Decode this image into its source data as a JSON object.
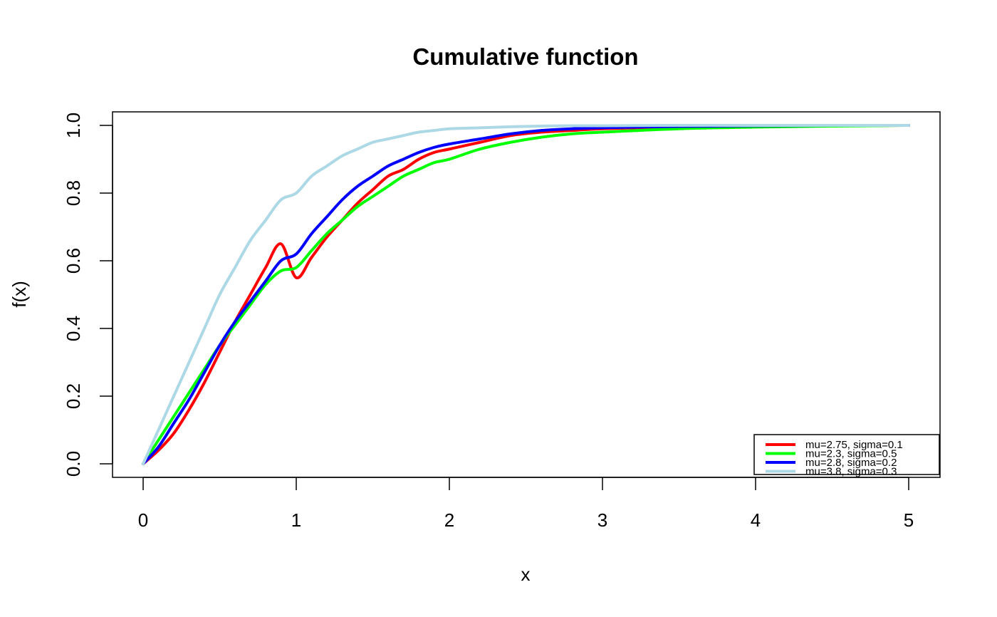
{
  "chart_data": {
    "type": "line",
    "title": "Cumulative function",
    "xlabel": "x",
    "ylabel": "f(x)",
    "xlim": [
      0,
      5
    ],
    "ylim": [
      0,
      1
    ],
    "x_ticks": [
      "0",
      "1",
      "2",
      "3",
      "4",
      "5"
    ],
    "y_ticks": [
      "0.0",
      "0.2",
      "0.4",
      "0.6",
      "0.8",
      "1.0"
    ],
    "grid": false,
    "legend_position": "bottom-right",
    "x": [
      0,
      0.1,
      0.2,
      0.3,
      0.4,
      0.5,
      0.6,
      0.7,
      0.8,
      0.9,
      1.0,
      1.1,
      1.2,
      1.3,
      1.4,
      1.5,
      1.6,
      1.7,
      1.8,
      1.9,
      2.0,
      2.2,
      2.4,
      2.6,
      2.8,
      3.0,
      3.5,
      4.0,
      4.5,
      5.0
    ],
    "series": [
      {
        "name": "mu=2.75, sigma=0.1",
        "color": "#ff0000",
        "values": [
          0.0,
          0.04,
          0.09,
          0.16,
          0.24,
          0.33,
          0.42,
          0.5,
          0.58,
          0.65,
          0.55,
          0.61,
          0.67,
          0.72,
          0.77,
          0.81,
          0.85,
          0.87,
          0.9,
          0.92,
          0.93,
          0.95,
          0.97,
          0.98,
          0.985,
          0.99,
          0.996,
          0.998,
          0.999,
          1.0
        ]
      },
      {
        "name": "mu=2.3, sigma=0.5",
        "color": "#00ff00",
        "values": [
          0.0,
          0.07,
          0.14,
          0.21,
          0.28,
          0.35,
          0.41,
          0.47,
          0.53,
          0.57,
          0.58,
          0.63,
          0.68,
          0.72,
          0.76,
          0.79,
          0.82,
          0.85,
          0.87,
          0.89,
          0.9,
          0.93,
          0.95,
          0.965,
          0.975,
          0.98,
          0.99,
          0.995,
          0.998,
          1.0
        ]
      },
      {
        "name": "mu=2.8, sigma=0.2",
        "color": "#0000ff",
        "values": [
          0.0,
          0.05,
          0.12,
          0.19,
          0.27,
          0.35,
          0.42,
          0.48,
          0.54,
          0.6,
          0.62,
          0.68,
          0.73,
          0.78,
          0.82,
          0.85,
          0.88,
          0.9,
          0.92,
          0.935,
          0.945,
          0.96,
          0.975,
          0.985,
          0.99,
          0.993,
          0.997,
          0.999,
          1.0,
          1.0
        ]
      },
      {
        "name": "mu=3.8, sigma=0.3",
        "color": "#add8e6",
        "values": [
          0.0,
          0.1,
          0.2,
          0.3,
          0.4,
          0.5,
          0.58,
          0.66,
          0.72,
          0.78,
          0.8,
          0.85,
          0.88,
          0.91,
          0.93,
          0.95,
          0.96,
          0.97,
          0.98,
          0.985,
          0.99,
          0.993,
          0.996,
          0.998,
          0.999,
          0.999,
          1.0,
          1.0,
          1.0,
          1.0
        ]
      }
    ]
  }
}
